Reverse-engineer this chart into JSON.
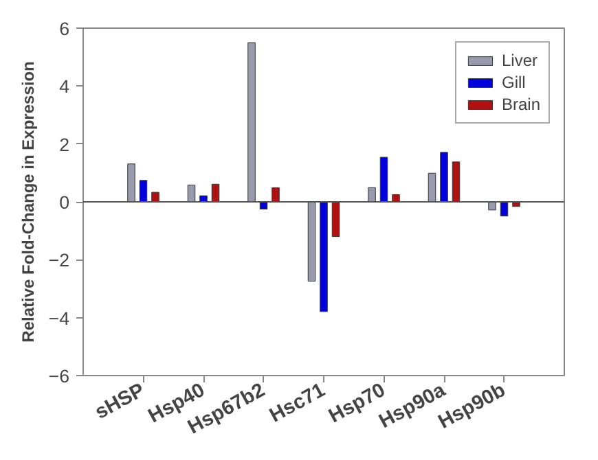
{
  "chart_data": {
    "type": "bar",
    "ylabel": "Relative Fold-Change in Expression",
    "categories": [
      "sHSP",
      "Hsp40",
      "Hsp67b2",
      "Hsc71",
      "Hsp70",
      "Hsp90a",
      "Hsp90b"
    ],
    "series": [
      {
        "name": "Liver",
        "color": "#9a9aae",
        "values": [
          1.31,
          0.58,
          5.5,
          -2.74,
          0.49,
          0.99,
          -0.28
        ]
      },
      {
        "name": "Gill",
        "color": "#0000dd",
        "values": [
          0.74,
          0.21,
          -0.25,
          -3.79,
          1.54,
          1.71,
          -0.49
        ]
      },
      {
        "name": "Brain",
        "color": "#b01010",
        "values": [
          0.33,
          0.61,
          0.49,
          -1.2,
          0.25,
          1.38,
          -0.16
        ]
      }
    ],
    "ylim": [
      -6,
      6
    ],
    "yticks": [
      -6,
      -4,
      -2,
      0,
      2,
      4,
      6
    ],
    "grid": false,
    "ref_lines": [
      {
        "axis": "y",
        "value": 0,
        "color": "#555555"
      }
    ],
    "legend": "top right"
  }
}
